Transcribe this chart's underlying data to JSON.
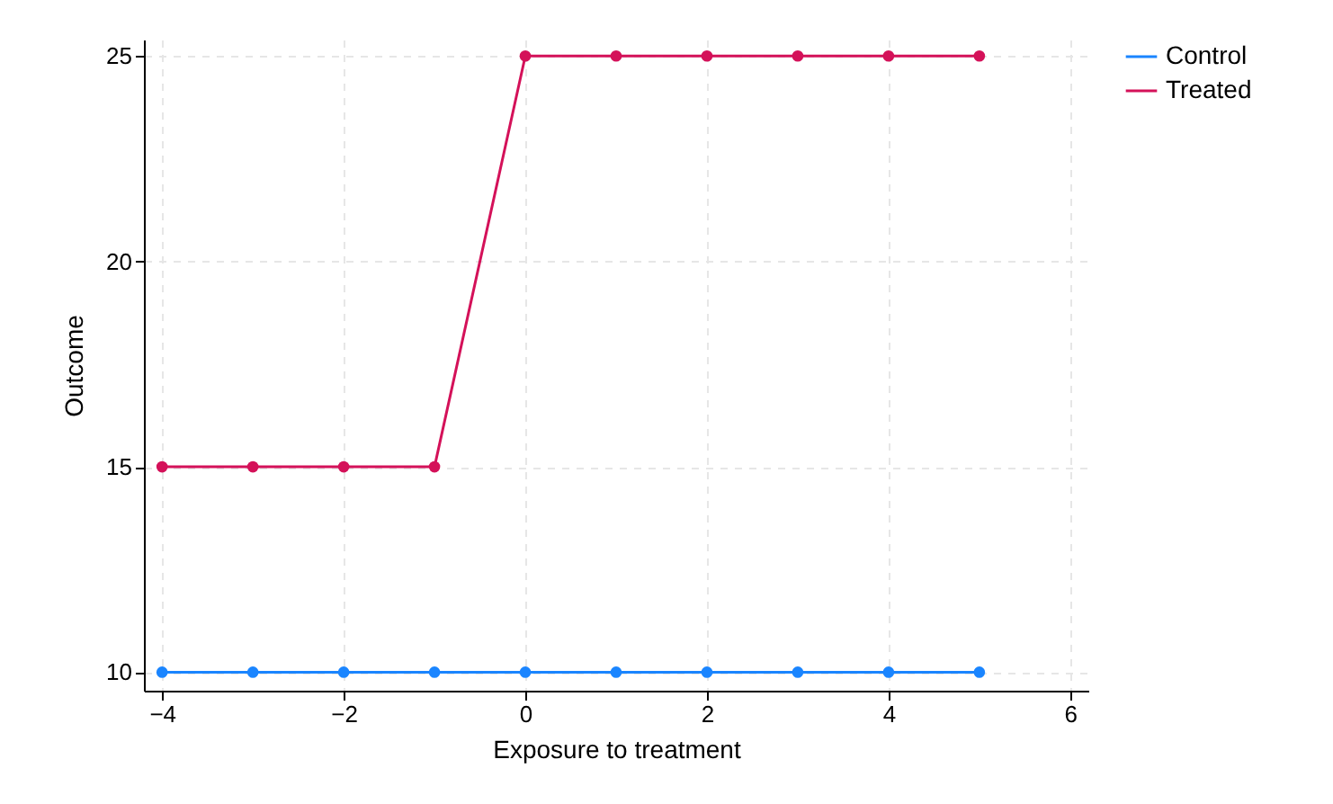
{
  "chart_data": {
    "type": "line",
    "xlabel": "Exposure to treatment",
    "ylabel": "Outcome",
    "x": [
      -4,
      -3,
      -2,
      -1,
      0,
      1,
      2,
      3,
      4,
      5
    ],
    "series": [
      {
        "name": "Control",
        "color": "#1a85ff",
        "values": [
          10,
          10,
          10,
          10,
          10,
          10,
          10,
          10,
          10,
          10
        ]
      },
      {
        "name": "Treated",
        "color": "#d41159",
        "values": [
          15,
          15,
          15,
          15,
          25,
          25,
          25,
          25,
          25,
          25
        ]
      }
    ],
    "xlim": [
      -4.2,
      6.2
    ],
    "xticks": [
      -4,
      -2,
      0,
      2,
      4,
      6
    ],
    "ylim": [
      9.55,
      25.4
    ],
    "yticks": [
      10,
      15,
      20,
      25
    ],
    "grid": true,
    "legend": "right",
    "marker": "circle",
    "line_style": "solid"
  }
}
